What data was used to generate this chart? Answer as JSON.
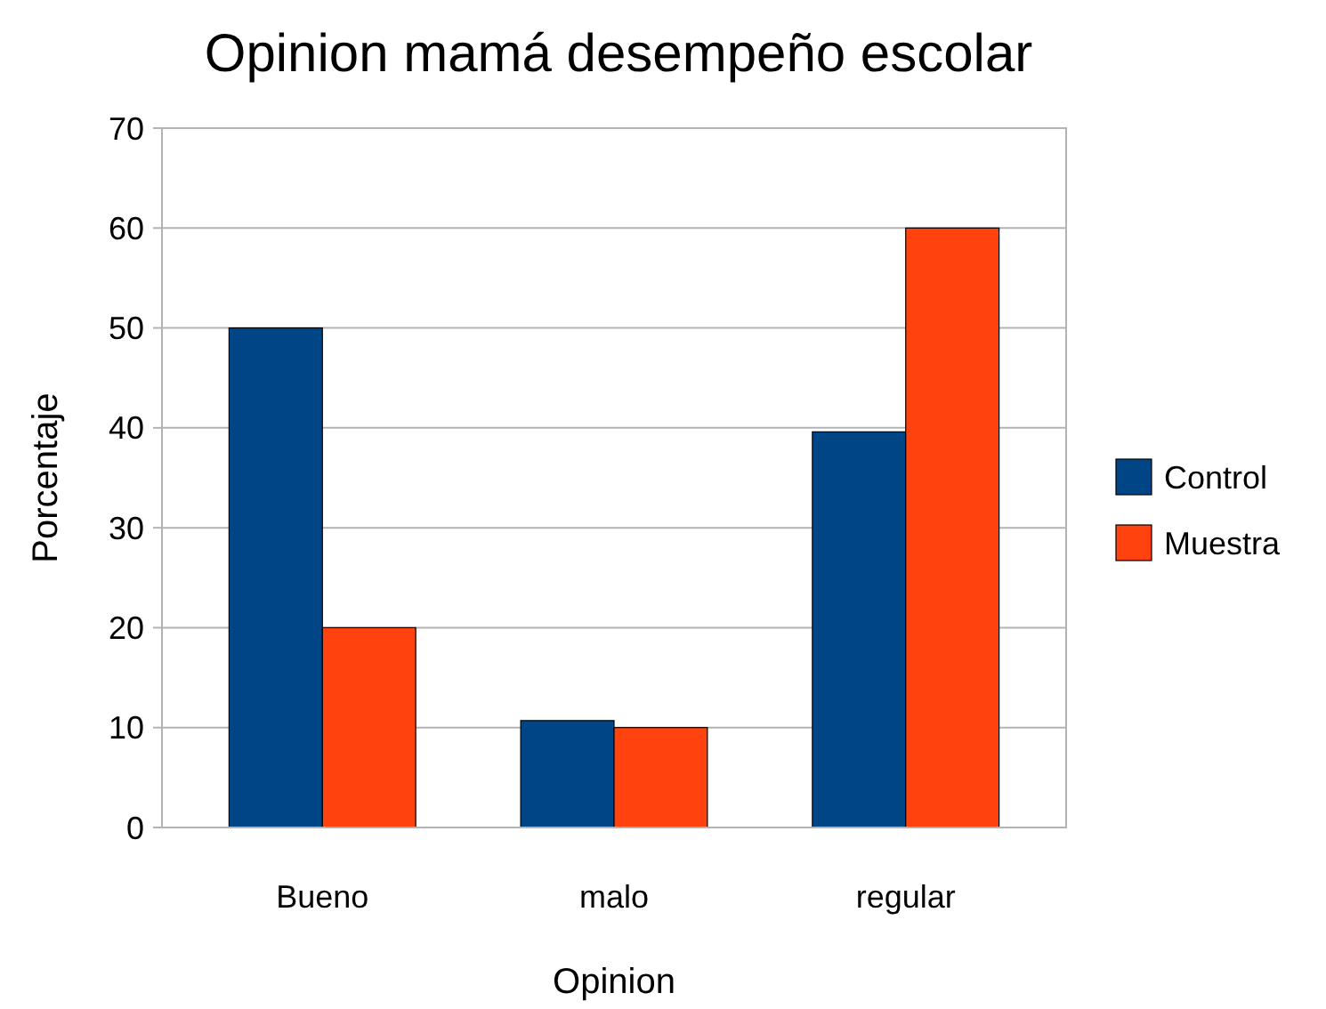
{
  "chart_data": {
    "type": "bar",
    "title": "Opinion mamá desempeño escolar",
    "xlabel": "Opinion",
    "ylabel": "Porcentaje",
    "categories": [
      "Bueno",
      "malo",
      "regular"
    ],
    "series": [
      {
        "name": "Control",
        "color": "#004586",
        "values": [
          50,
          10.7,
          39.6
        ]
      },
      {
        "name": "Muestra",
        "color": "#ff420e",
        "values": [
          20,
          10,
          60
        ]
      }
    ],
    "ylim": [
      0,
      70
    ],
    "yticks": [
      0,
      10,
      20,
      30,
      40,
      50,
      60,
      70
    ],
    "grid": "y",
    "legend": "right"
  }
}
